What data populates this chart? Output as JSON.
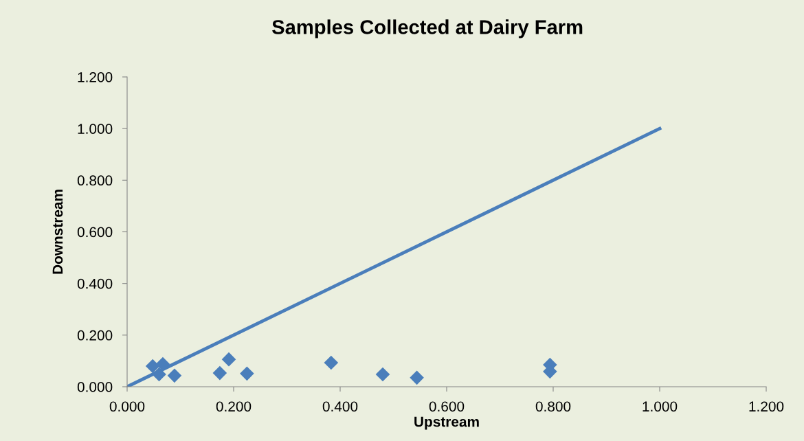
{
  "chart_data": {
    "type": "scatter",
    "title": "Samples Collected at Dairy Farm",
    "xlabel": "Upstream",
    "ylabel": "Downstream",
    "xlim": [
      0,
      1.2
    ],
    "ylim": [
      0,
      1.2
    ],
    "xticks": [
      {
        "value": 0,
        "label": "0.000"
      },
      {
        "value": 0.2,
        "label": "0.200"
      },
      {
        "value": 0.4,
        "label": "0.400"
      },
      {
        "value": 0.6,
        "label": "0.600"
      },
      {
        "value": 0.8,
        "label": "0.800"
      },
      {
        "value": 1.0,
        "label": "1.000"
      },
      {
        "value": 1.2,
        "label": "1.200"
      }
    ],
    "yticks": [
      {
        "value": 0,
        "label": "0.000"
      },
      {
        "value": 0.2,
        "label": "0.200"
      },
      {
        "value": 0.4,
        "label": "0.400"
      },
      {
        "value": 0.6,
        "label": "0.600"
      },
      {
        "value": 0.8,
        "label": "0.800"
      },
      {
        "value": 1.0,
        "label": "1.000"
      },
      {
        "value": 1.2,
        "label": "1.200"
      }
    ],
    "grid": false,
    "legend": false,
    "series": [
      {
        "color": "#4a7ebb",
        "marker": "diamond",
        "x": [
          0.048,
          0.067,
          0.06,
          0.089,
          0.174,
          0.191,
          0.225,
          0.383,
          0.48,
          0.544,
          0.794,
          0.794
        ],
        "values": [
          0.08,
          0.088,
          0.048,
          0.043,
          0.053,
          0.106,
          0.051,
          0.093,
          0.048,
          0.035,
          0.085,
          0.059
        ]
      },
      {
        "type": "line",
        "color": "#4a7ebb",
        "marker": "none",
        "line_style": "solid",
        "x": [
          0,
          1.0
        ],
        "values": [
          0,
          1.0
        ]
      }
    ]
  }
}
